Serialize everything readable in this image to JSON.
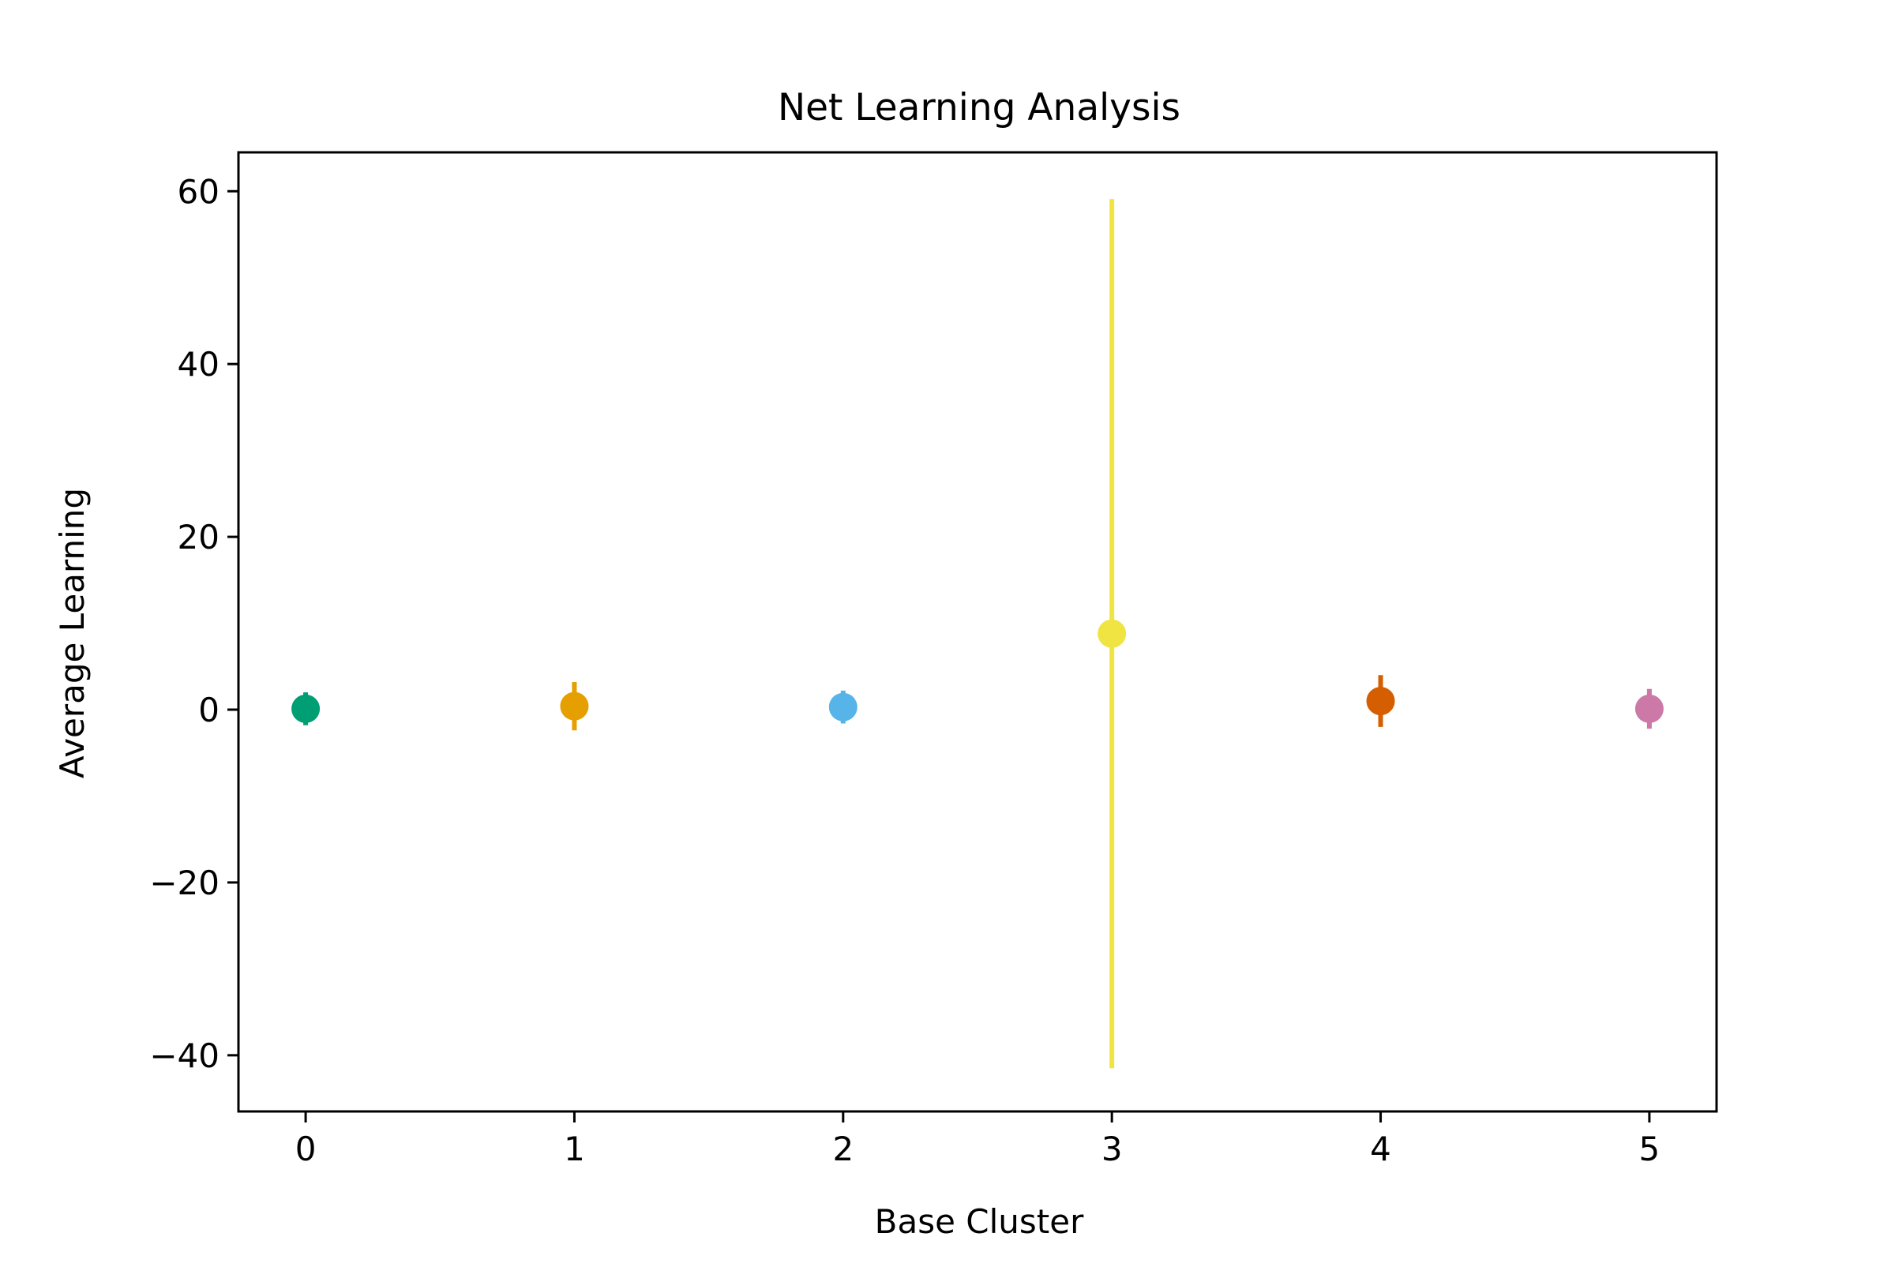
{
  "chart_data": {
    "type": "scatter",
    "title": "Net Learning Analysis",
    "xlabel": "Base Cluster",
    "ylabel": "Average Learning",
    "xlim": [
      -0.25,
      5.25
    ],
    "ylim": [
      -46.5,
      64.5
    ],
    "x_ticks": [
      0,
      1,
      2,
      3,
      4,
      5
    ],
    "x_tick_labels": [
      "0",
      "1",
      "2",
      "3",
      "4",
      "5"
    ],
    "y_ticks": [
      -40,
      -20,
      0,
      20,
      40,
      60
    ],
    "y_tick_labels": [
      "−40",
      "−20",
      "0",
      "20",
      "40",
      "60"
    ],
    "grid": false,
    "legend": "none",
    "points": [
      {
        "x": 0,
        "y": 0.1,
        "error": 1.9,
        "color": "#009e73"
      },
      {
        "x": 1,
        "y": 0.4,
        "error": 2.8,
        "color": "#e69f00"
      },
      {
        "x": 2,
        "y": 0.3,
        "error": 1.9,
        "color": "#56b4e9"
      },
      {
        "x": 3,
        "y": 8.8,
        "error": 50.3,
        "color": "#f0e442"
      },
      {
        "x": 4,
        "y": 1.0,
        "error": 3.0,
        "color": "#d55e00"
      },
      {
        "x": 5,
        "y": 0.1,
        "error": 2.3,
        "color": "#cc79a7"
      }
    ]
  }
}
